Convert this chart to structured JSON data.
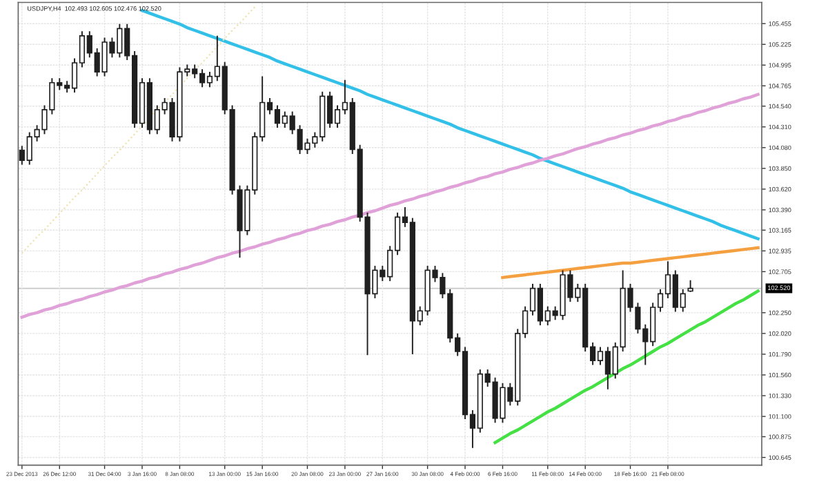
{
  "chart_data": {
    "type": "candlestick",
    "title": "USDJPY,H4  102.493 102.605 102.476 102.520",
    "categories": [
      "23 Dec 2013",
      null,
      null,
      null,
      null,
      "26 Dec 12:00",
      null,
      null,
      null,
      null,
      null,
      "31 Dec 04:00",
      null,
      null,
      null,
      null,
      "3 Jan 16:00",
      null,
      null,
      null,
      null,
      "8 Jan 08:00",
      null,
      null,
      null,
      null,
      null,
      "13 Jan 00:00",
      null,
      null,
      null,
      null,
      "15 Jan 16:00",
      null,
      null,
      null,
      null,
      null,
      "20 Jan 08:00",
      null,
      null,
      null,
      null,
      "23 Jan 00:00",
      null,
      null,
      null,
      null,
      "27 Jan 16:00",
      null,
      null,
      null,
      null,
      null,
      "30 Jan 08:00",
      null,
      null,
      null,
      null,
      "4 Feb 00:00",
      null,
      null,
      null,
      null,
      "6 Feb 16:00",
      null,
      null,
      null,
      null,
      null,
      "11 Feb 08:00",
      null,
      null,
      null,
      null,
      "14 Feb 00:00",
      null,
      null,
      null,
      null,
      null,
      "18 Feb 16:00",
      null,
      null,
      null,
      null,
      "21 Feb 08:00",
      null,
      null,
      null,
      null,
      null,
      null,
      null,
      null,
      null,
      null,
      null,
      null
    ],
    "ylim": [
      100.56,
      105.69
    ],
    "yticks": [
      {
        "value": 105.455,
        "label": "105.455"
      },
      {
        "value": 105.225,
        "label": "105.225"
      },
      {
        "value": 104.995,
        "label": "104.995"
      },
      {
        "value": 104.765,
        "label": "104.765"
      },
      {
        "value": 104.54,
        "label": "104.540"
      },
      {
        "value": 104.31,
        "label": "104.310"
      },
      {
        "value": 104.08,
        "label": "104.080"
      },
      {
        "value": 103.85,
        "label": "103.850"
      },
      {
        "value": 103.62,
        "label": "103.620"
      },
      {
        "value": 103.39,
        "label": "103.390"
      },
      {
        "value": 103.165,
        "label": "103.165"
      },
      {
        "value": 102.935,
        "label": "102.935"
      },
      {
        "value": 102.705,
        "label": "102.705"
      },
      {
        "value": 102.25,
        "label": "102.250"
      },
      {
        "value": 102.02,
        "label": "102.020"
      },
      {
        "value": 101.79,
        "label": "101.790"
      },
      {
        "value": 101.56,
        "label": "101.560"
      },
      {
        "value": 101.33,
        "label": "101.330"
      },
      {
        "value": 101.1,
        "label": "101.100"
      },
      {
        "value": 100.875,
        "label": "100.875"
      },
      {
        "value": 100.645,
        "label": "100.645"
      }
    ],
    "grid": true,
    "ref_lines": [
      {
        "axis": "y",
        "value": 102.52,
        "label": "102.520",
        "color": "#c8c8c8"
      }
    ],
    "series": [
      {
        "color": "#202020",
        "ohlc": [
          [
            104.05,
            104.1,
            103.89,
            103.94
          ],
          [
            103.94,
            104.25,
            103.89,
            104.2
          ],
          [
            104.2,
            104.33,
            104.15,
            104.28
          ],
          [
            104.28,
            104.55,
            104.23,
            104.5
          ],
          [
            104.5,
            104.85,
            104.45,
            104.8
          ],
          [
            104.8,
            104.85,
            104.72,
            104.77
          ],
          [
            104.77,
            104.82,
            104.69,
            104.74
          ],
          [
            104.74,
            105.07,
            104.69,
            105.02
          ],
          [
            105.02,
            105.37,
            104.97,
            105.32
          ],
          [
            105.32,
            105.37,
            105.08,
            105.13
          ],
          [
            105.13,
            105.18,
            104.87,
            104.92
          ],
          [
            104.92,
            105.3,
            104.87,
            105.25
          ],
          [
            105.25,
            105.3,
            105.08,
            105.13
          ],
          [
            105.13,
            105.45,
            105.08,
            105.4
          ],
          [
            105.4,
            105.45,
            105.05,
            105.1
          ],
          [
            105.1,
            105.15,
            104.3,
            104.35
          ],
          [
            104.35,
            104.85,
            104.3,
            104.8
          ],
          [
            104.8,
            104.85,
            104.23,
            104.28
          ],
          [
            104.28,
            104.55,
            104.23,
            104.5
          ],
          [
            104.5,
            104.63,
            104.45,
            104.58
          ],
          [
            104.58,
            104.63,
            104.15,
            104.2
          ],
          [
            104.2,
            104.97,
            104.15,
            104.92
          ],
          [
            104.92,
            105.0,
            104.87,
            104.95
          ],
          [
            104.95,
            105.0,
            104.85,
            104.9
          ],
          [
            104.9,
            104.95,
            104.75,
            104.8
          ],
          [
            104.8,
            104.92,
            104.75,
            104.87
          ],
          [
            104.87,
            105.32,
            104.82,
            104.98
          ],
          [
            104.98,
            105.03,
            104.45,
            104.5
          ],
          [
            104.5,
            104.55,
            103.56,
            103.61
          ],
          [
            103.61,
            103.66,
            102.86,
            103.16
          ],
          [
            103.16,
            103.66,
            103.11,
            103.61
          ],
          [
            103.61,
            104.25,
            103.56,
            104.2
          ],
          [
            104.2,
            104.87,
            104.15,
            104.58
          ],
          [
            104.58,
            104.63,
            104.45,
            104.5
          ],
          [
            104.5,
            104.55,
            104.3,
            104.35
          ],
          [
            104.35,
            104.48,
            104.3,
            104.43
          ],
          [
            104.43,
            104.48,
            104.23,
            104.28
          ],
          [
            104.28,
            104.33,
            104.01,
            104.06
          ],
          [
            104.06,
            104.18,
            104.01,
            104.13
          ],
          [
            104.13,
            104.25,
            104.08,
            104.2
          ],
          [
            104.2,
            104.7,
            104.15,
            104.65
          ],
          [
            104.65,
            104.7,
            104.3,
            104.35
          ],
          [
            104.35,
            104.55,
            104.3,
            104.5
          ],
          [
            104.5,
            104.83,
            104.45,
            104.58
          ],
          [
            104.58,
            104.63,
            104.01,
            104.06
          ],
          [
            104.06,
            104.11,
            103.26,
            103.31
          ],
          [
            103.31,
            103.36,
            101.78,
            102.46
          ],
          [
            102.46,
            102.77,
            102.41,
            102.72
          ],
          [
            102.72,
            102.77,
            102.6,
            102.65
          ],
          [
            102.65,
            102.99,
            102.6,
            102.94
          ],
          [
            102.94,
            103.36,
            102.89,
            103.31
          ],
          [
            103.31,
            103.42,
            103.2,
            103.25
          ],
          [
            103.25,
            103.3,
            101.79,
            102.16
          ],
          [
            102.16,
            102.32,
            102.11,
            102.27
          ],
          [
            102.27,
            102.77,
            102.22,
            102.72
          ],
          [
            102.72,
            102.77,
            102.59,
            102.64
          ],
          [
            102.64,
            102.69,
            102.41,
            102.46
          ],
          [
            102.46,
            102.51,
            101.92,
            101.97
          ],
          [
            101.97,
            102.02,
            101.77,
            101.82
          ],
          [
            101.82,
            101.87,
            101.07,
            101.12
          ],
          [
            101.12,
            101.17,
            100.75,
            100.97
          ],
          [
            100.97,
            101.62,
            100.92,
            101.57
          ],
          [
            101.57,
            101.62,
            101.43,
            101.48
          ],
          [
            101.48,
            101.53,
            101.03,
            101.08
          ],
          [
            101.08,
            101.47,
            101.03,
            101.42
          ],
          [
            101.42,
            101.47,
            101.22,
            101.27
          ],
          [
            101.27,
            102.07,
            101.22,
            102.02
          ],
          [
            102.02,
            102.32,
            101.97,
            102.27
          ],
          [
            102.27,
            102.57,
            102.22,
            102.52
          ],
          [
            102.52,
            102.57,
            102.11,
            102.16
          ],
          [
            102.16,
            102.32,
            102.11,
            102.27
          ],
          [
            102.27,
            102.32,
            102.17,
            102.22
          ],
          [
            102.22,
            102.72,
            102.17,
            102.67
          ],
          [
            102.67,
            102.72,
            102.37,
            102.42
          ],
          [
            102.42,
            102.57,
            102.37,
            102.52
          ],
          [
            102.52,
            102.57,
            101.82,
            101.87
          ],
          [
            101.87,
            101.92,
            101.67,
            101.72
          ],
          [
            101.72,
            101.87,
            101.67,
            101.82
          ],
          [
            101.82,
            101.87,
            101.4,
            101.57
          ],
          [
            101.57,
            101.92,
            101.52,
            101.87
          ],
          [
            101.87,
            102.72,
            101.82,
            102.52
          ],
          [
            102.52,
            102.57,
            102.26,
            102.31
          ],
          [
            102.31,
            102.36,
            102.02,
            102.07
          ],
          [
            102.07,
            102.12,
            101.67,
            101.93
          ],
          [
            101.93,
            102.36,
            101.88,
            102.31
          ],
          [
            102.31,
            102.51,
            102.26,
            102.46
          ],
          [
            102.46,
            102.82,
            102.41,
            102.67
          ],
          [
            102.67,
            102.72,
            102.26,
            102.31
          ],
          [
            102.31,
            102.51,
            102.26,
            102.46
          ],
          [
            102.49,
            102.61,
            102.48,
            102.52
          ],
          null,
          null,
          null,
          null,
          null,
          null,
          null,
          null,
          null
        ]
      },
      {
        "type": "line",
        "color": "#33c0e8",
        "line_style": "solid",
        "values": [
          null,
          null,
          null,
          null,
          null,
          null,
          null,
          null,
          null,
          null,
          null,
          null,
          null,
          null,
          null,
          null,
          105.6,
          105.57,
          105.54,
          105.51,
          105.48,
          105.45,
          105.41,
          105.38,
          105.35,
          105.32,
          105.29,
          105.26,
          105.23,
          105.2,
          105.17,
          105.14,
          105.11,
          105.08,
          105.04,
          105.01,
          104.98,
          104.95,
          104.92,
          104.89,
          104.86,
          104.83,
          104.8,
          104.77,
          104.74,
          104.71,
          104.67,
          104.64,
          104.61,
          104.58,
          104.55,
          104.52,
          104.49,
          104.46,
          104.43,
          104.4,
          104.37,
          104.34,
          104.3,
          104.27,
          104.24,
          104.21,
          104.18,
          104.15,
          104.12,
          104.09,
          104.06,
          104.03,
          104.0,
          103.96,
          103.93,
          103.9,
          103.87,
          103.84,
          103.81,
          103.78,
          103.75,
          103.72,
          103.69,
          103.66,
          103.63,
          103.59,
          103.56,
          103.53,
          103.5,
          103.47,
          103.44,
          103.41,
          103.38,
          103.35,
          103.32,
          103.29,
          103.26,
          103.22,
          103.19,
          103.16,
          103.13,
          103.1,
          103.07
        ]
      },
      {
        "type": "line",
        "color": "#e0a0d8",
        "line_style": "solid",
        "values": [
          102.2,
          102.23,
          102.25,
          102.28,
          102.3,
          102.33,
          102.35,
          102.38,
          102.4,
          102.43,
          102.45,
          102.48,
          102.5,
          102.53,
          102.55,
          102.58,
          102.6,
          102.63,
          102.65,
          102.68,
          102.7,
          102.73,
          102.75,
          102.78,
          102.8,
          102.83,
          102.86,
          102.88,
          102.91,
          102.93,
          102.96,
          102.98,
          103.01,
          103.03,
          103.06,
          103.08,
          103.11,
          103.13,
          103.16,
          103.18,
          103.21,
          103.23,
          103.26,
          103.28,
          103.31,
          103.33,
          103.36,
          103.38,
          103.41,
          103.44,
          103.46,
          103.49,
          103.51,
          103.54,
          103.56,
          103.59,
          103.61,
          103.64,
          103.66,
          103.69,
          103.71,
          103.74,
          103.76,
          103.79,
          103.81,
          103.84,
          103.86,
          103.89,
          103.91,
          103.94,
          103.96,
          103.99,
          104.01,
          104.04,
          104.07,
          104.09,
          104.12,
          104.14,
          104.17,
          104.19,
          104.22,
          104.24,
          104.27,
          104.29,
          104.32,
          104.34,
          104.37,
          104.39,
          104.42,
          104.44,
          104.47,
          104.49,
          104.52,
          104.54,
          104.57,
          104.59,
          104.62,
          104.64,
          104.67
        ]
      },
      {
        "type": "line",
        "color": "#f5a040",
        "line_style": "solid",
        "values": [
          null,
          null,
          null,
          null,
          null,
          null,
          null,
          null,
          null,
          null,
          null,
          null,
          null,
          null,
          null,
          null,
          null,
          null,
          null,
          null,
          null,
          null,
          null,
          null,
          null,
          null,
          null,
          null,
          null,
          null,
          null,
          null,
          null,
          null,
          null,
          null,
          null,
          null,
          null,
          null,
          null,
          null,
          null,
          null,
          null,
          null,
          null,
          null,
          null,
          null,
          null,
          null,
          null,
          null,
          null,
          null,
          null,
          null,
          null,
          null,
          null,
          null,
          null,
          null,
          102.64,
          102.65,
          102.66,
          102.67,
          102.68,
          102.69,
          102.7,
          102.71,
          102.72,
          102.73,
          102.74,
          102.75,
          102.76,
          102.77,
          102.78,
          102.79,
          102.8,
          102.8,
          102.81,
          102.82,
          102.83,
          102.84,
          102.85,
          102.86,
          102.87,
          102.88,
          102.89,
          102.9,
          102.91,
          102.92,
          102.93,
          102.94,
          102.95,
          102.96,
          102.97
        ]
      },
      {
        "type": "line",
        "color": "#44e044",
        "line_style": "solid",
        "values": [
          null,
          null,
          null,
          null,
          null,
          null,
          null,
          null,
          null,
          null,
          null,
          null,
          null,
          null,
          null,
          null,
          null,
          null,
          null,
          null,
          null,
          null,
          null,
          null,
          null,
          null,
          null,
          null,
          null,
          null,
          null,
          null,
          null,
          null,
          null,
          null,
          null,
          null,
          null,
          null,
          null,
          null,
          null,
          null,
          null,
          null,
          null,
          null,
          null,
          null,
          null,
          null,
          null,
          null,
          null,
          null,
          null,
          null,
          null,
          null,
          null,
          null,
          null,
          100.81,
          100.86,
          100.91,
          100.95,
          101.0,
          101.05,
          101.1,
          101.15,
          101.19,
          101.24,
          101.29,
          101.34,
          101.39,
          101.43,
          101.48,
          101.53,
          101.58,
          101.63,
          101.67,
          101.72,
          101.77,
          101.82,
          101.87,
          101.91,
          101.96,
          102.01,
          102.06,
          102.11,
          102.15,
          102.2,
          102.25,
          102.3,
          102.35,
          102.39,
          102.44,
          102.49
        ]
      },
      {
        "type": "line",
        "color": "#efe2b0",
        "line_style": "dotted",
        "values": [
          102.91,
          103.0,
          103.09,
          103.17,
          103.26,
          103.35,
          103.44,
          103.53,
          103.61,
          103.7,
          103.79,
          103.88,
          103.97,
          104.05,
          104.14,
          104.23,
          104.32,
          104.41,
          104.5,
          104.58,
          104.67,
          104.76,
          104.85,
          104.94,
          105.02,
          105.11,
          105.2,
          105.29,
          105.38,
          105.46,
          105.55,
          105.64,
          null,
          null,
          null,
          null,
          null,
          null,
          null,
          null,
          null,
          null,
          null,
          null,
          null,
          null,
          null,
          null,
          null,
          null,
          null,
          null,
          null,
          null,
          null,
          null,
          null,
          null,
          null,
          null,
          null,
          null,
          null,
          null,
          null,
          null,
          null,
          null,
          null,
          null,
          null,
          null,
          null,
          null,
          null,
          null,
          null,
          null,
          null,
          null,
          null,
          null,
          null,
          null,
          null,
          null,
          null,
          null,
          null,
          null,
          null,
          null,
          null,
          null,
          null,
          null,
          null,
          null,
          null
        ]
      }
    ]
  }
}
